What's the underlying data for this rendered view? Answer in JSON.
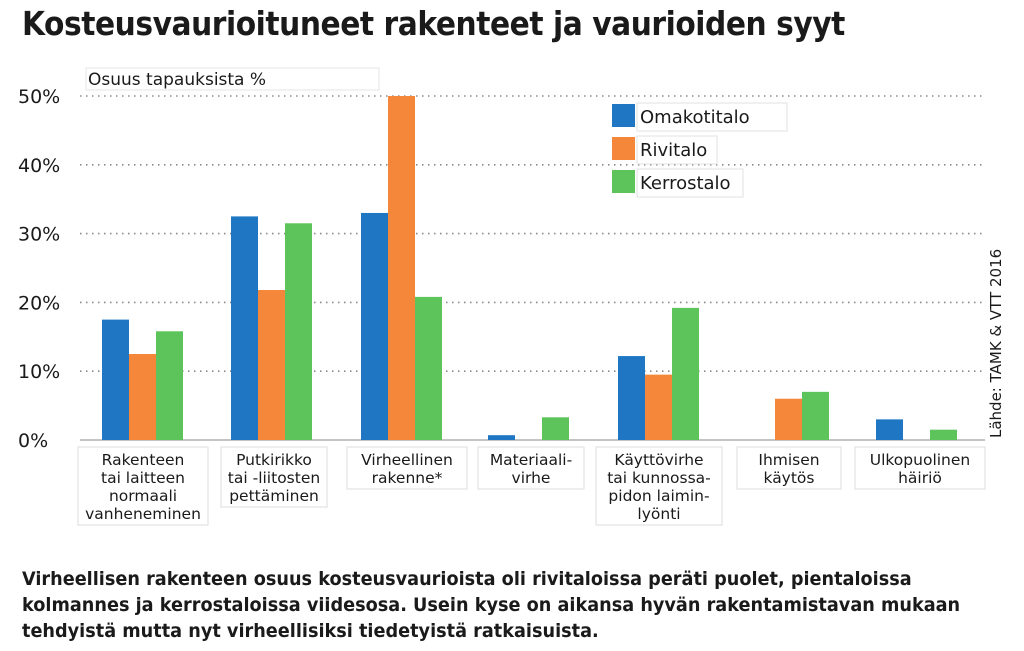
{
  "title": "Kosteusvaurioituneet rakenteet ja vaurioiden syyt",
  "caption_lines": [
    "Virheellisen rakenteen osuus kosteusvaurioista oli rivitaloissa peräti puolet, pientaloissa",
    "kolmannes ja kerrostaloissa viidesosa. Usein kyse on aikansa hyvän rakentamistavan mukaan",
    "tehdyistä mutta nyt virheellisiksi tiedetyistä ratkaisuista."
  ],
  "source": "Lähde: TAMK & VTT 2016",
  "chart_data": {
    "type": "bar",
    "ylabel": "Osuus tapauksista %",
    "ylim": [
      0,
      50
    ],
    "yticks": [
      "0%",
      "10%",
      "20%",
      "30%",
      "40%",
      "50%"
    ],
    "ytick_values": [
      0,
      10,
      20,
      30,
      40,
      50
    ],
    "grid": true,
    "legend_position": "top-right",
    "categories": [
      [
        "Rakenteen",
        "tai laitteen",
        "normaali",
        "vanheneminen"
      ],
      [
        "Putkirikko",
        "tai -liitosten",
        "pettäminen"
      ],
      [
        "Virheellinen",
        "rakenne*"
      ],
      [
        "Materiaali-",
        "virhe"
      ],
      [
        "Käyttövirhe",
        "tai kunnossa-",
        "pidon laimin-",
        "lyönti"
      ],
      [
        "Ihmisen",
        "käytös"
      ],
      [
        "Ulkopuolinen",
        "häiriö"
      ]
    ],
    "series": [
      {
        "name": "Omakotitalo",
        "color": "#1f77c4",
        "values": [
          17.5,
          32.5,
          33,
          0.7,
          12.2,
          0,
          3
        ]
      },
      {
        "name": "Rivitalo",
        "color": "#f5873a",
        "values": [
          12.5,
          21.8,
          50,
          0,
          9.5,
          6,
          0
        ]
      },
      {
        "name": "Kerrostalo",
        "color": "#5cc45a",
        "values": [
          15.8,
          31.5,
          20.8,
          3.3,
          19.2,
          7,
          1.5
        ]
      }
    ]
  }
}
